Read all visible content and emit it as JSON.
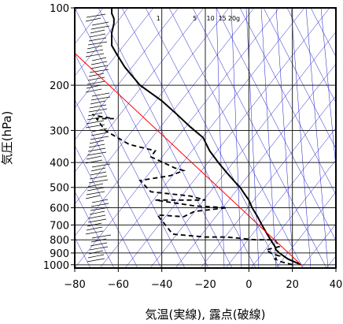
{
  "chart_data": {
    "type": "line",
    "title": "",
    "xlabel": "気温(実線), 露点(破線)",
    "ylabel": "気圧(hPa)",
    "xlim": [
      -80,
      40
    ],
    "ylim": [
      1030,
      100
    ],
    "y_scale": "log",
    "x_ticks": [
      -80,
      -60,
      -40,
      -20,
      0,
      20,
      40
    ],
    "x_tick_labels": [
      "−80",
      "−60",
      "−40",
      "−20",
      "0",
      "20",
      "40"
    ],
    "y_ticks": [
      100,
      200,
      300,
      400,
      500,
      600,
      700,
      800,
      900,
      1000
    ],
    "y_tick_labels": [
      "100",
      "200",
      "300",
      "400",
      "500",
      "600",
      "700",
      "800",
      "900",
      "1000"
    ],
    "grid": true,
    "mixing_ratio_labels": [
      "1",
      "5",
      "10",
      "15",
      "20g"
    ],
    "colors": {
      "temperature": "#000000",
      "dewpoint": "#000000",
      "reference": "#ff0000",
      "background_lines": "#1a1acc",
      "grid": "#222222"
    },
    "series": [
      {
        "style": "solid",
        "x": [
          24,
          21,
          18,
          16,
          14,
          12.5,
          12,
          10,
          8,
          6,
          4,
          1.5,
          0,
          -2,
          -4,
          -6,
          -10,
          -14,
          -18,
          -21,
          -27,
          -33,
          -40,
          -50,
          -57,
          -61,
          -63,
          -63,
          -62,
          -62,
          -63,
          -63
        ],
        "y": [
          1000,
          975,
          950,
          925,
          900,
          875,
          850,
          800,
          750,
          700,
          650,
          600,
          560,
          530,
          500,
          480,
          440,
          400,
          360,
          320,
          290,
          260,
          230,
          200,
          170,
          150,
          140,
          125,
          115,
          110,
          105,
          100
        ]
      },
      {
        "style": "dashed",
        "x": [
          20,
          15,
          12,
          14,
          10,
          8,
          14,
          12,
          3,
          -10,
          -20,
          -35,
          -42,
          -30,
          -25,
          -10,
          -25,
          -43,
          -20,
          -27,
          -45,
          -50,
          -36,
          -30,
          -34,
          -45,
          -43,
          -55,
          -66,
          -70,
          -62,
          -68,
          -72
        ],
        "y": [
          1000,
          975,
          950,
          925,
          900,
          875,
          850,
          800,
          800,
          780,
          780,
          760,
          640,
          650,
          620,
          600,
          590,
          560,
          560,
          540,
          520,
          470,
          450,
          430,
          420,
          380,
          360,
          340,
          300,
          270,
          270,
          265,
          260
        ]
      },
      {
        "style": "solid-red",
        "x": [
          24,
          -80
        ],
        "y": [
          1000,
          150
        ]
      }
    ]
  }
}
